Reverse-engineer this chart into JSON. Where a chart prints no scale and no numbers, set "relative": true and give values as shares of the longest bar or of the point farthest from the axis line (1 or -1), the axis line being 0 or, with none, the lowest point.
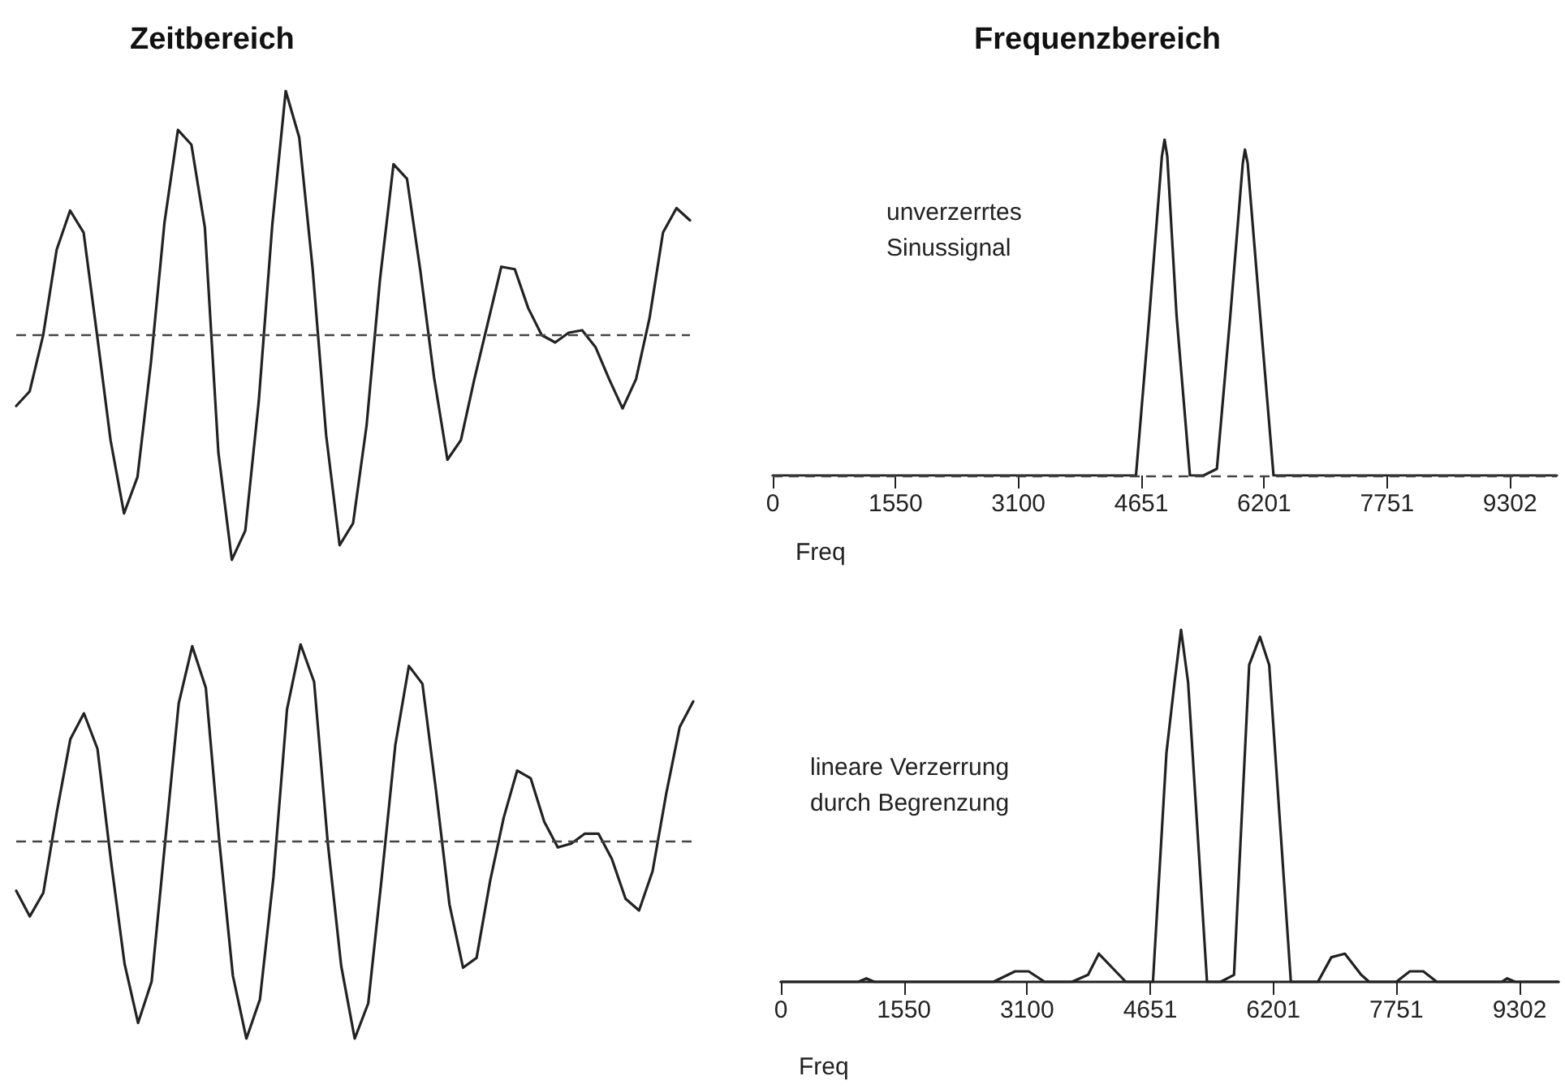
{
  "chart_data": [
    {
      "type": "line",
      "title": "Zeitbereich",
      "relative": true,
      "tick_labels": false,
      "marker": "none",
      "line_style": "solid",
      "color": "#222222",
      "categories": [
        null,
        null,
        null,
        null,
        null,
        null,
        null,
        null,
        null,
        null,
        null,
        null,
        null,
        null,
        null,
        null,
        null,
        null,
        null,
        null,
        null,
        null,
        null,
        null,
        null,
        null,
        null,
        null,
        null,
        null,
        null,
        null,
        null,
        null,
        null,
        null,
        null,
        null,
        null,
        null,
        null,
        null,
        null,
        null,
        null,
        null,
        null,
        null,
        null,
        null,
        null
      ],
      "values": [
        -0.29,
        -0.23,
        0,
        0.35,
        0.51,
        0.42,
        0,
        -0.43,
        -0.73,
        -0.58,
        -0.11,
        0.46,
        0.84,
        0.78,
        0.44,
        -0.48,
        -0.92,
        -0.8,
        -0.27,
        0.45,
        1,
        0.81,
        0.27,
        -0.41,
        -0.86,
        -0.77,
        -0.37,
        0.23,
        0.7,
        0.64,
        0.26,
        -0.17,
        -0.51,
        -0.43,
        -0.18,
        0.05,
        0.28,
        0.27,
        0.11,
        0,
        -0.03,
        0.01,
        0.02,
        -0.05,
        -0.18,
        -0.3,
        -0.18,
        0.07,
        0.42,
        0.52,
        0.47
      ],
      "ref_lines": [
        {
          "axis": "y",
          "value": 0,
          "line_style": "dashed",
          "color": "#444444"
        }
      ]
    },
    {
      "type": "line",
      "title": "Frequenzbereich",
      "xlabel": "Freq",
      "relative": true,
      "tick_labels": "x",
      "marker": "none",
      "line_style": "solid",
      "color": "#222222",
      "xlim": [
        0,
        9894
      ],
      "xticks": [
        0,
        1550,
        3100,
        4651,
        6201,
        7751,
        9302
      ],
      "x": [
        0,
        4583,
        4753,
        4910,
        4944,
        4978,
        5094,
        5264,
        5434,
        5604,
        5775,
        5931,
        5958,
        5992,
        6149,
        6319,
        9894
      ],
      "values": [
        0,
        0,
        0.48,
        0.95,
        1,
        0.95,
        0.48,
        0,
        0,
        0.02,
        0.48,
        0.93,
        0.97,
        0.93,
        0.48,
        0,
        0
      ],
      "ref_lines": [
        {
          "axis": "y",
          "value": 0,
          "line_style": "dashed",
          "color": "#444444"
        }
      ],
      "annotations": [
        "unverzerrtes\nSinussignal"
      ]
    },
    {
      "type": "line",
      "relative": true,
      "tick_labels": false,
      "marker": "none",
      "line_style": "solid",
      "color": "#222222",
      "categories": [
        null,
        null,
        null,
        null,
        null,
        null,
        null,
        null,
        null,
        null,
        null,
        null,
        null,
        null,
        null,
        null,
        null,
        null,
        null,
        null,
        null,
        null,
        null,
        null,
        null,
        null,
        null,
        null,
        null,
        null,
        null,
        null,
        null,
        null,
        null,
        null,
        null,
        null,
        null,
        null,
        null,
        null,
        null,
        null,
        null,
        null,
        null,
        null,
        null,
        null,
        null
      ],
      "values": [
        -0.25,
        -0.38,
        -0.26,
        0.15,
        0.52,
        0.65,
        0.47,
        -0.1,
        -0.62,
        -0.92,
        -0.71,
        0,
        0.7,
        0.99,
        0.78,
        0,
        -0.68,
        -1,
        -0.8,
        -0.18,
        0.67,
        1,
        0.81,
        0,
        -0.63,
        -1,
        -0.82,
        -0.18,
        0.49,
        0.89,
        0.8,
        0.26,
        -0.32,
        -0.64,
        -0.59,
        -0.2,
        0.12,
        0.36,
        0.32,
        0.1,
        -0.03,
        -0.01,
        0.04,
        0.04,
        -0.09,
        -0.29,
        -0.35,
        -0.15,
        0.24,
        0.58,
        0.71
      ],
      "ref_lines": [
        {
          "axis": "y",
          "value": 0,
          "line_style": "dashed",
          "color": "#444444"
        }
      ]
    },
    {
      "type": "line",
      "xlabel": "Freq",
      "relative": true,
      "tick_labels": "x",
      "marker": "none",
      "line_style": "solid",
      "color": "#222222",
      "xlim": [
        0,
        9792
      ],
      "xticks": [
        0,
        1550,
        3100,
        4651,
        6201,
        7751,
        9302
      ],
      "x": [
        0,
        974,
        1076,
        1178,
        2676,
        2949,
        3119,
        3323,
        3664,
        3868,
        4004,
        4344,
        4685,
        4855,
        4957,
        5039,
        5128,
        5366,
        5536,
        5706,
        5897,
        6033,
        6149,
        6422,
        6762,
        6932,
        7102,
        7307,
        7409,
        7749,
        7920,
        8090,
        8260,
        9077,
        9145,
        9247,
        9792
      ],
      "values": [
        0,
        0,
        0.01,
        0,
        0,
        0.03,
        0.03,
        0,
        0,
        0.02,
        0.08,
        0,
        0,
        0.65,
        0.85,
        1,
        0.85,
        0,
        0,
        0.02,
        0.9,
        0.98,
        0.9,
        0,
        0,
        0.07,
        0.08,
        0.02,
        0,
        0,
        0.03,
        0.03,
        0,
        0,
        0.01,
        0,
        0
      ],
      "annotations": [
        "lineare Verzerrung\ndurch Begrenzung"
      ]
    }
  ]
}
